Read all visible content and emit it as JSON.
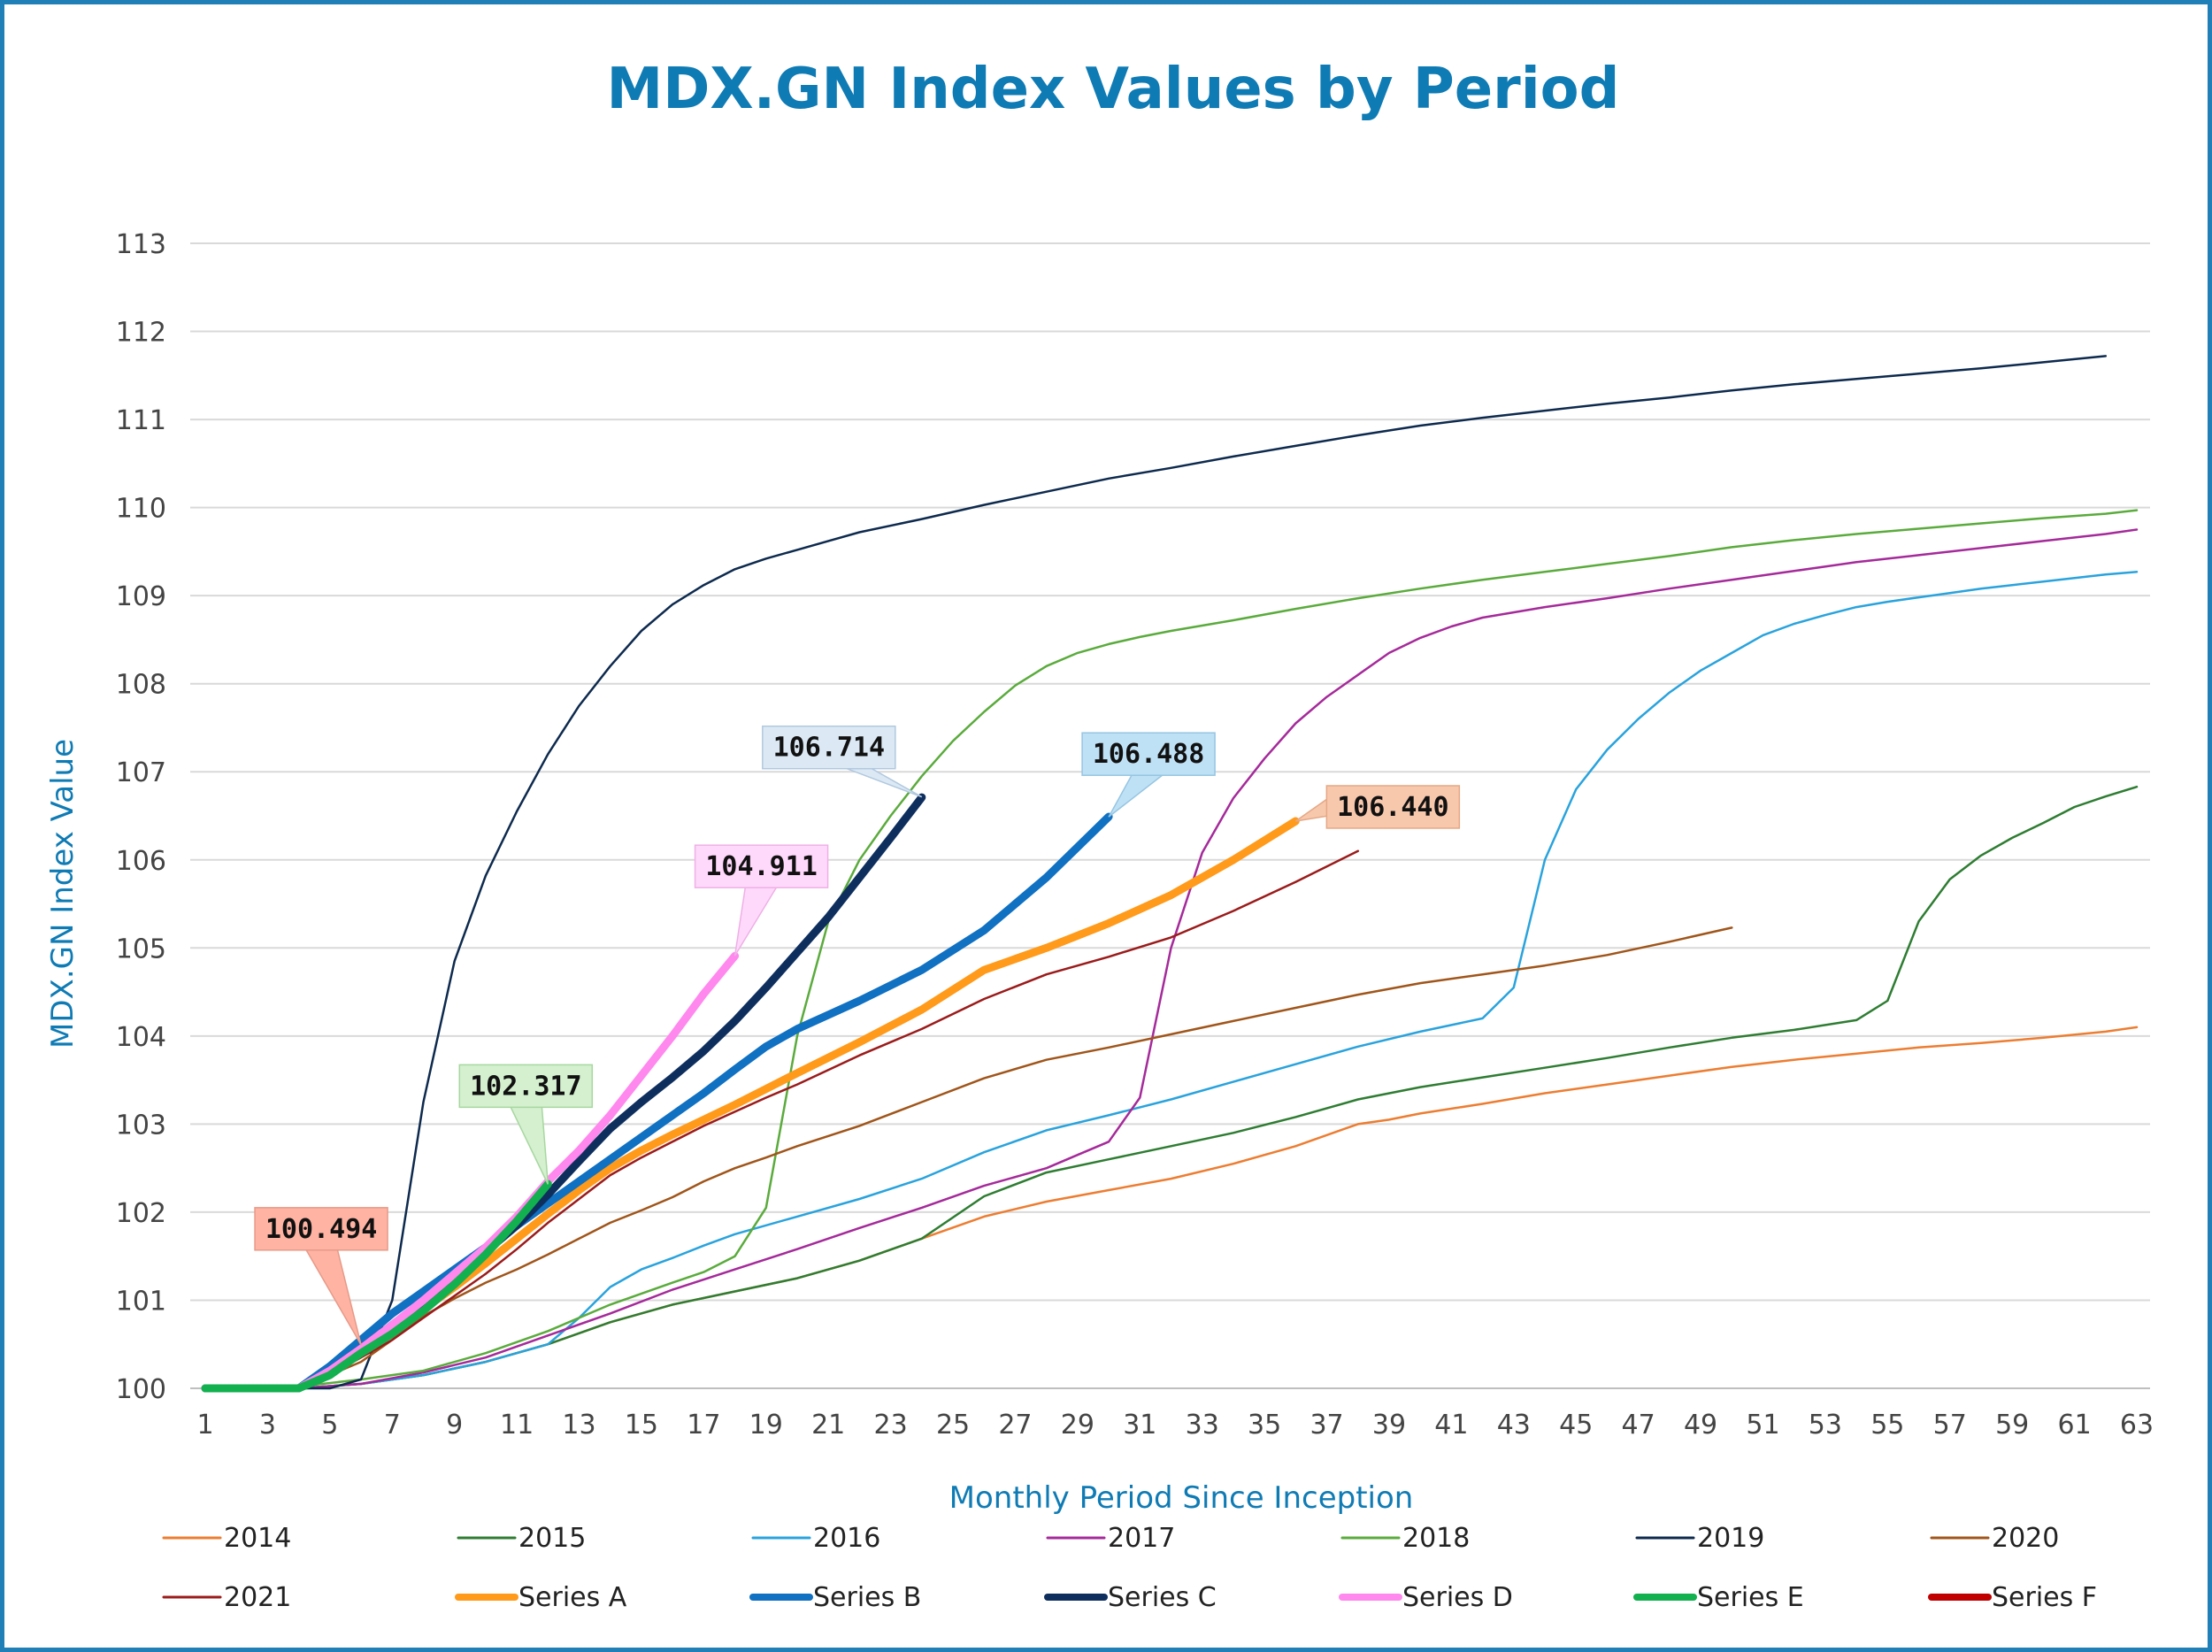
{
  "chart_data": {
    "type": "line",
    "title": "MDX.GN Index Values by Period",
    "xlabel": "Monthly Period Since Inception",
    "ylabel": "MDX.GN Index Value",
    "xlim": [
      1,
      63
    ],
    "ylim": [
      100,
      113
    ],
    "xticks": [
      1,
      3,
      5,
      7,
      9,
      11,
      13,
      15,
      17,
      19,
      21,
      23,
      25,
      27,
      29,
      31,
      33,
      35,
      37,
      39,
      41,
      43,
      45,
      47,
      49,
      51,
      53,
      55,
      57,
      59,
      61,
      63
    ],
    "yticks": [
      100,
      101,
      102,
      103,
      104,
      105,
      106,
      107,
      108,
      109,
      110,
      111,
      112,
      113
    ],
    "grid": "horizontal",
    "legend_position": "bottom",
    "series": [
      {
        "name": "2014",
        "color": "#ed7d31",
        "width": 2.5,
        "x": [
          1,
          4,
          6,
          8,
          10,
          12,
          14,
          16,
          18,
          20,
          22,
          24,
          26,
          28,
          30,
          32,
          34,
          36,
          38,
          39,
          40,
          42,
          44,
          46,
          48,
          50,
          52,
          54,
          56,
          58,
          60,
          62,
          63
        ],
        "y": [
          100,
          100,
          100.05,
          100.15,
          100.3,
          100.5,
          100.75,
          100.95,
          101.1,
          101.25,
          101.45,
          101.7,
          101.95,
          102.12,
          102.25,
          102.38,
          102.55,
          102.75,
          103.0,
          103.05,
          103.12,
          103.23,
          103.35,
          103.45,
          103.55,
          103.65,
          103.73,
          103.8,
          103.87,
          103.92,
          103.98,
          104.05,
          104.1
        ]
      },
      {
        "name": "2015",
        "color": "#2e7d32",
        "width": 2.5,
        "x": [
          1,
          4,
          6,
          8,
          10,
          12,
          14,
          16,
          18,
          20,
          22,
          24,
          26,
          28,
          30,
          32,
          34,
          36,
          38,
          40,
          42,
          44,
          46,
          48,
          50,
          52,
          54,
          55,
          56,
          57,
          58,
          59,
          60,
          61,
          62,
          63
        ],
        "y": [
          100,
          100,
          100.05,
          100.15,
          100.3,
          100.5,
          100.75,
          100.95,
          101.1,
          101.25,
          101.45,
          101.7,
          102.18,
          102.45,
          102.6,
          102.75,
          102.9,
          103.08,
          103.28,
          103.42,
          103.53,
          103.64,
          103.75,
          103.87,
          103.98,
          104.07,
          104.18,
          104.4,
          105.3,
          105.78,
          106.05,
          106.25,
          106.42,
          106.6,
          106.72,
          106.83
        ]
      },
      {
        "name": "2016",
        "color": "#29a3dd",
        "width": 2.5,
        "x": [
          1,
          4,
          6,
          8,
          10,
          12,
          13,
          14,
          15,
          16,
          17,
          18,
          20,
          22,
          24,
          26,
          28,
          30,
          32,
          34,
          36,
          38,
          40,
          42,
          43,
          44,
          45,
          46,
          47,
          48,
          49,
          50,
          51,
          52,
          53,
          54,
          55,
          56,
          57,
          58,
          59,
          60,
          61,
          62,
          63
        ],
        "y": [
          100,
          100,
          100.05,
          100.15,
          100.3,
          100.5,
          100.8,
          101.15,
          101.35,
          101.48,
          101.62,
          101.75,
          101.95,
          102.15,
          102.38,
          102.68,
          102.93,
          103.1,
          103.28,
          103.48,
          103.68,
          103.88,
          104.05,
          104.2,
          104.55,
          106.0,
          106.8,
          107.25,
          107.6,
          107.9,
          108.15,
          108.35,
          108.55,
          108.68,
          108.78,
          108.87,
          108.93,
          108.98,
          109.03,
          109.08,
          109.12,
          109.16,
          109.2,
          109.24,
          109.27
        ]
      },
      {
        "name": "2017",
        "color": "#a52a9a",
        "width": 2.5,
        "x": [
          1,
          4,
          6,
          8,
          10,
          12,
          14,
          16,
          18,
          20,
          22,
          24,
          26,
          28,
          29,
          30,
          31,
          32,
          33,
          34,
          35,
          36,
          37,
          38,
          39,
          40,
          41,
          42,
          44,
          46,
          48,
          50,
          52,
          54,
          56,
          58,
          60,
          62,
          63
        ],
        "y": [
          100,
          100,
          100.05,
          100.18,
          100.35,
          100.6,
          100.85,
          101.12,
          101.35,
          101.58,
          101.82,
          102.05,
          102.3,
          102.5,
          102.65,
          102.8,
          103.3,
          105.0,
          106.08,
          106.7,
          107.15,
          107.55,
          107.85,
          108.1,
          108.35,
          108.52,
          108.65,
          108.75,
          108.87,
          108.97,
          109.08,
          109.18,
          109.28,
          109.38,
          109.46,
          109.54,
          109.62,
          109.7,
          109.75
        ]
      },
      {
        "name": "2018",
        "color": "#5aab3c",
        "width": 2.5,
        "x": [
          1,
          4,
          6,
          8,
          10,
          12,
          14,
          16,
          17,
          18,
          19,
          20,
          21,
          22,
          23,
          24,
          25,
          26,
          27,
          28,
          29,
          30,
          31,
          32,
          34,
          36,
          38,
          40,
          42,
          44,
          46,
          48,
          50,
          52,
          54,
          56,
          58,
          60,
          62,
          63
        ],
        "y": [
          100.02,
          100.02,
          100.1,
          100.2,
          100.4,
          100.65,
          100.95,
          101.2,
          101.32,
          101.5,
          102.05,
          104.0,
          105.3,
          106.0,
          106.5,
          106.95,
          107.35,
          107.68,
          107.98,
          108.2,
          108.35,
          108.45,
          108.53,
          108.6,
          108.72,
          108.85,
          108.97,
          109.08,
          109.18,
          109.27,
          109.36,
          109.45,
          109.55,
          109.63,
          109.7,
          109.76,
          109.82,
          109.88,
          109.93,
          109.97
        ]
      },
      {
        "name": "2019",
        "color": "#0d2a4e",
        "width": 2.5,
        "x": [
          1,
          5,
          6,
          7,
          8,
          9,
          10,
          11,
          12,
          13,
          14,
          15,
          16,
          17,
          18,
          19,
          20,
          21,
          22,
          24,
          26,
          28,
          30,
          32,
          34,
          36,
          38,
          40,
          42,
          44,
          46,
          48,
          50,
          52,
          54,
          56,
          58,
          60,
          62
        ],
        "y": [
          100,
          100,
          100.1,
          101.0,
          103.25,
          104.85,
          105.82,
          106.55,
          107.2,
          107.75,
          108.2,
          108.6,
          108.9,
          109.12,
          109.3,
          109.42,
          109.52,
          109.62,
          109.72,
          109.87,
          110.03,
          110.18,
          110.33,
          110.45,
          110.58,
          110.7,
          110.82,
          110.93,
          111.02,
          111.1,
          111.18,
          111.25,
          111.33,
          111.4,
          111.46,
          111.52,
          111.58,
          111.65,
          111.72
        ]
      },
      {
        "name": "2020",
        "color": "#a0551a",
        "width": 2.5,
        "x": [
          1,
          4,
          6,
          7,
          8,
          9,
          10,
          11,
          12,
          13,
          14,
          15,
          16,
          17,
          18,
          19,
          20,
          22,
          24,
          26,
          28,
          30,
          32,
          34,
          36,
          38,
          40,
          42,
          44,
          46,
          48,
          50
        ],
        "y": [
          100,
          100,
          100.3,
          100.55,
          100.82,
          101.02,
          101.2,
          101.35,
          101.52,
          101.7,
          101.88,
          102.02,
          102.17,
          102.35,
          102.5,
          102.62,
          102.75,
          102.98,
          103.25,
          103.52,
          103.73,
          103.87,
          104.02,
          104.17,
          104.32,
          104.47,
          104.6,
          104.7,
          104.8,
          104.92,
          105.07,
          105.23
        ]
      },
      {
        "name": "2021",
        "color": "#9b1b1b",
        "width": 2.5,
        "x": [
          1,
          4,
          5,
          6,
          7,
          8,
          9,
          10,
          11,
          12,
          13,
          14,
          15,
          16,
          17,
          18,
          19,
          20,
          22,
          24,
          26,
          28,
          30,
          32,
          34,
          36,
          38
        ],
        "y": [
          100,
          100,
          100.15,
          100.35,
          100.55,
          100.8,
          101.05,
          101.3,
          101.58,
          101.88,
          102.15,
          102.42,
          102.62,
          102.8,
          102.98,
          103.14,
          103.3,
          103.45,
          103.78,
          104.08,
          104.42,
          104.7,
          104.9,
          105.12,
          105.42,
          105.75,
          106.1
        ]
      },
      {
        "name": "Series A",
        "color": "#ff9a1a",
        "width": 9,
        "x": [
          1,
          4,
          5,
          6,
          7,
          8,
          9,
          10,
          11,
          12,
          13,
          14,
          15,
          16,
          17,
          18,
          19,
          20,
          22,
          24,
          26,
          28,
          30,
          32,
          34,
          36
        ],
        "y": [
          100,
          100,
          100.18,
          100.42,
          100.65,
          100.9,
          101.15,
          101.42,
          101.7,
          101.98,
          102.25,
          102.5,
          102.7,
          102.88,
          103.05,
          103.22,
          103.4,
          103.58,
          103.93,
          104.3,
          104.75,
          105.0,
          105.28,
          105.6,
          106.0,
          106.44
        ]
      },
      {
        "name": "Series B",
        "color": "#1070c2",
        "width": 9,
        "x": [
          1,
          4,
          5,
          6,
          7,
          8,
          9,
          10,
          11,
          12,
          13,
          14,
          15,
          16,
          17,
          18,
          19,
          20,
          22,
          24,
          26,
          28,
          30
        ],
        "y": [
          100,
          100,
          100.25,
          100.55,
          100.85,
          101.1,
          101.35,
          101.6,
          101.85,
          102.1,
          102.35,
          102.6,
          102.85,
          103.1,
          103.35,
          103.62,
          103.88,
          104.08,
          104.4,
          104.75,
          105.2,
          105.8,
          106.49
        ]
      },
      {
        "name": "Series C",
        "color": "#0e2f5e",
        "width": 9,
        "x": [
          1,
          4,
          5,
          6,
          7,
          8,
          9,
          10,
          11,
          12,
          13,
          14,
          15,
          16,
          17,
          18,
          19,
          20,
          21,
          22,
          23,
          24
        ],
        "y": [
          100,
          100,
          100.2,
          100.45,
          100.72,
          100.98,
          101.25,
          101.55,
          101.85,
          102.2,
          102.58,
          102.95,
          103.25,
          103.53,
          103.83,
          104.17,
          104.55,
          104.95,
          105.35,
          105.8,
          106.25,
          106.71
        ]
      },
      {
        "name": "Series D",
        "color": "#ff88ee",
        "width": 9,
        "x": [
          1,
          4,
          5,
          6,
          7,
          8,
          9,
          10,
          11,
          12,
          13,
          14,
          15,
          16,
          17,
          18
        ],
        "y": [
          100,
          100,
          100.2,
          100.45,
          100.72,
          101.0,
          101.3,
          101.6,
          101.95,
          102.35,
          102.7,
          103.1,
          103.55,
          104.0,
          104.48,
          104.91
        ]
      },
      {
        "name": "Series E",
        "color": "#12b04e",
        "width": 9,
        "x": [
          1,
          4,
          5,
          6,
          7,
          8,
          9,
          10,
          11,
          12
        ],
        "y": [
          100,
          100,
          100.15,
          100.4,
          100.62,
          100.88,
          101.18,
          101.52,
          101.9,
          102.32
        ]
      },
      {
        "name": "Series F",
        "color": "#c00000",
        "width": 9,
        "x": [],
        "y": []
      }
    ],
    "callouts": [
      {
        "text": "100.494",
        "x": 6,
        "y": 100.494,
        "bg": "#ffb3a3",
        "border": "#e79a88"
      },
      {
        "text": "102.317",
        "x": 12,
        "y": 102.317,
        "bg": "#d4f0cf",
        "border": "#a7d79f"
      },
      {
        "text": "104.911",
        "x": 18,
        "y": 104.911,
        "bg": "#ffd9fb",
        "border": "#eeb0e6"
      },
      {
        "text": "106.714",
        "x": 24,
        "y": 106.714,
        "bg": "#dce9f5",
        "border": "#b1c8df"
      },
      {
        "text": "106.488",
        "x": 30,
        "y": 106.488,
        "bg": "#bfe1f5",
        "border": "#95c5e2"
      },
      {
        "text": "106.440",
        "x": 36,
        "y": 106.44,
        "bg": "#f8c8ad",
        "border": "#e5a886"
      }
    ]
  }
}
